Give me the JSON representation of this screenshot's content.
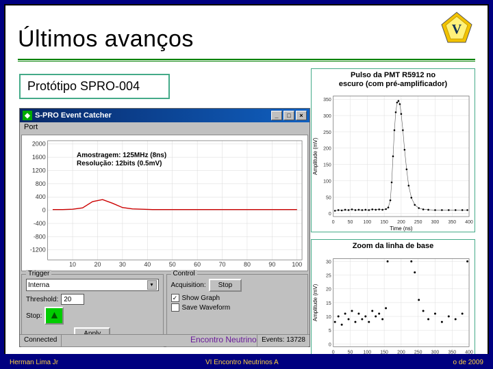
{
  "title": "Últimos avanços",
  "proto_label": "Protótipo SPRO-004",
  "window": {
    "title": "S-PRO Event Catcher",
    "menu_port": "Port",
    "annotation_l1": "Amostragem: 125MHz (8ns)",
    "annotation_l2": "Resolução: 12bits (0.5mV)",
    "waveform_chart": {
      "type": "line",
      "x_ticks": [
        10,
        20,
        30,
        40,
        50,
        60,
        70,
        80,
        90,
        100
      ],
      "y_ticks": [
        -1200,
        -800,
        -400,
        0,
        400,
        800,
        1200,
        1600,
        2000
      ],
      "ylim": [
        -1500,
        2100
      ],
      "xlim": [
        0,
        102
      ],
      "series_color": "#cc0000",
      "grid_color": "#d9d9d9",
      "axis_color": "#666666",
      "tick_fontsize": 9,
      "data": [
        [
          2,
          20
        ],
        [
          6,
          20
        ],
        [
          10,
          30
        ],
        [
          14,
          70
        ],
        [
          18,
          260
        ],
        [
          22,
          320
        ],
        [
          26,
          210
        ],
        [
          30,
          80
        ],
        [
          34,
          40
        ],
        [
          38,
          30
        ],
        [
          42,
          20
        ],
        [
          46,
          20
        ],
        [
          50,
          20
        ],
        [
          55,
          20
        ],
        [
          60,
          20
        ],
        [
          65,
          20
        ],
        [
          70,
          20
        ],
        [
          75,
          20
        ],
        [
          80,
          20
        ],
        [
          85,
          20
        ],
        [
          90,
          20
        ],
        [
          95,
          20
        ],
        [
          100,
          20
        ]
      ]
    },
    "trigger_group": "Trigger",
    "trigger_mode": "Interna",
    "threshold_label": "Threshold:",
    "threshold_value": "20",
    "stop_label": "Stop:",
    "apply_btn": "Apply",
    "control_group": "Control",
    "acq_label": "Acquisition:",
    "acq_btn": "Stop",
    "chk_show": "Show Graph",
    "chk_save": "Save Waveform",
    "status_connected": "Connected",
    "status_events": "Events: 13728"
  },
  "right_top": {
    "title_l1": "Pulso da PMT R5912 no",
    "title_l2": "escuro (com pré-amplificador)",
    "chart": {
      "type": "scatter-line",
      "xlabel": "Time (ns)",
      "ylabel": "Amplitude (mV)",
      "x_ticks": [
        0,
        50,
        100,
        150,
        200,
        250,
        300,
        350,
        400
      ],
      "y_ticks": [
        0,
        50,
        100,
        150,
        200,
        250,
        300,
        350
      ],
      "xlim": [
        0,
        400
      ],
      "ylim": [
        -10,
        360
      ],
      "marker_color": "#000000",
      "line_color": "#555555",
      "grid_color": "#dddddd",
      "tick_fontsize": 7,
      "label_fontsize": 8,
      "data": [
        [
          5,
          8
        ],
        [
          15,
          10
        ],
        [
          25,
          9
        ],
        [
          35,
          11
        ],
        [
          45,
          10
        ],
        [
          55,
          12
        ],
        [
          65,
          10
        ],
        [
          75,
          11
        ],
        [
          85,
          10
        ],
        [
          95,
          11
        ],
        [
          105,
          10
        ],
        [
          115,
          12
        ],
        [
          125,
          11
        ],
        [
          135,
          12
        ],
        [
          145,
          11
        ],
        [
          155,
          13
        ],
        [
          162,
          18
        ],
        [
          168,
          40
        ],
        [
          172,
          95
        ],
        [
          176,
          175
        ],
        [
          180,
          255
        ],
        [
          184,
          310
        ],
        [
          188,
          340
        ],
        [
          192,
          345
        ],
        [
          196,
          335
        ],
        [
          200,
          305
        ],
        [
          205,
          255
        ],
        [
          210,
          195
        ],
        [
          216,
          135
        ],
        [
          222,
          85
        ],
        [
          230,
          48
        ],
        [
          240,
          26
        ],
        [
          252,
          16
        ],
        [
          265,
          12
        ],
        [
          280,
          11
        ],
        [
          300,
          10
        ],
        [
          320,
          10
        ],
        [
          340,
          10
        ],
        [
          360,
          10
        ],
        [
          380,
          10
        ],
        [
          395,
          10
        ]
      ]
    }
  },
  "right_bot": {
    "title": "Zoom da linha de base",
    "chart": {
      "type": "scatter",
      "xlabel": "Time (ns)",
      "ylabel": "Amplitude (mV)",
      "x_ticks": [
        0,
        50,
        100,
        150,
        200,
        250,
        300,
        350,
        400
      ],
      "y_ticks": [
        0,
        5,
        10,
        15,
        20,
        25,
        30
      ],
      "xlim": [
        0,
        400
      ],
      "ylim": [
        -1,
        31
      ],
      "marker_color": "#000000",
      "grid_color": "#dddddd",
      "tick_fontsize": 7,
      "label_fontsize": 8,
      "data": [
        [
          5,
          8
        ],
        [
          15,
          10
        ],
        [
          25,
          7
        ],
        [
          35,
          11
        ],
        [
          45,
          9
        ],
        [
          55,
          12
        ],
        [
          65,
          8
        ],
        [
          75,
          11
        ],
        [
          85,
          9
        ],
        [
          95,
          10
        ],
        [
          105,
          8
        ],
        [
          115,
          12
        ],
        [
          125,
          10
        ],
        [
          135,
          11
        ],
        [
          145,
          9
        ],
        [
          155,
          13
        ],
        [
          160,
          30
        ],
        [
          230,
          30
        ],
        [
          240,
          26
        ],
        [
          252,
          16
        ],
        [
          265,
          12
        ],
        [
          280,
          9
        ],
        [
          300,
          11
        ],
        [
          320,
          8
        ],
        [
          340,
          10
        ],
        [
          360,
          9
        ],
        [
          380,
          11
        ],
        [
          395,
          30
        ]
      ]
    }
  },
  "footer_link": "Encontro Neutrino",
  "footer": {
    "left": "Herman Lima Jr",
    "center": "VI Encontro Neutrinos A",
    "right": "o de 2009"
  }
}
